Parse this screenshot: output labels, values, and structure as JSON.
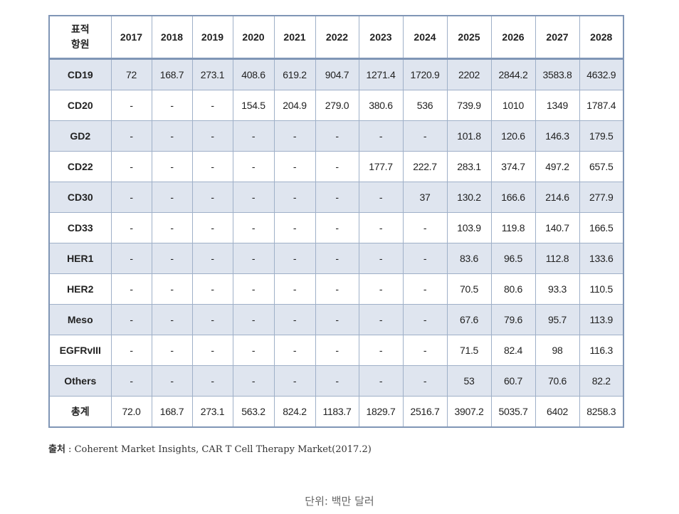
{
  "chart_data": {
    "type": "table",
    "corner_header": [
      "표적",
      "항원"
    ],
    "columns": [
      "2017",
      "2018",
      "2019",
      "2020",
      "2021",
      "2022",
      "2023",
      "2024",
      "2025",
      "2026",
      "2027",
      "2028"
    ],
    "rows": [
      {
        "label": "CD19",
        "values": [
          "72",
          "168.7",
          "273.1",
          "408.6",
          "619.2",
          "904.7",
          "1271.4",
          "1720.9",
          "2202",
          "2844.2",
          "3583.8",
          "4632.9"
        ]
      },
      {
        "label": "CD20",
        "values": [
          "-",
          "-",
          "-",
          "154.5",
          "204.9",
          "279.0",
          "380.6",
          "536",
          "739.9",
          "1010",
          "1349",
          "1787.4"
        ]
      },
      {
        "label": "GD2",
        "values": [
          "-",
          "-",
          "-",
          "-",
          "-",
          "-",
          "-",
          "-",
          "101.8",
          "120.6",
          "146.3",
          "179.5"
        ]
      },
      {
        "label": "CD22",
        "values": [
          "-",
          "-",
          "-",
          "-",
          "-",
          "-",
          "177.7",
          "222.7",
          "283.1",
          "374.7",
          "497.2",
          "657.5"
        ]
      },
      {
        "label": "CD30",
        "values": [
          "-",
          "-",
          "-",
          "-",
          "-",
          "-",
          "-",
          "37",
          "130.2",
          "166.6",
          "214.6",
          "277.9"
        ]
      },
      {
        "label": "CD33",
        "values": [
          "-",
          "-",
          "-",
          "-",
          "-",
          "-",
          "-",
          "-",
          "103.9",
          "119.8",
          "140.7",
          "166.5"
        ]
      },
      {
        "label": "HER1",
        "values": [
          "-",
          "-",
          "-",
          "-",
          "-",
          "-",
          "-",
          "-",
          "83.6",
          "96.5",
          "112.8",
          "133.6"
        ]
      },
      {
        "label": "HER2",
        "values": [
          "-",
          "-",
          "-",
          "-",
          "-",
          "-",
          "-",
          "-",
          "70.5",
          "80.6",
          "93.3",
          "110.5"
        ]
      },
      {
        "label": "Meso",
        "values": [
          "-",
          "-",
          "-",
          "-",
          "-",
          "-",
          "-",
          "-",
          "67.6",
          "79.6",
          "95.7",
          "113.9"
        ]
      },
      {
        "label": "EGFRvIII",
        "values": [
          "-",
          "-",
          "-",
          "-",
          "-",
          "-",
          "-",
          "-",
          "71.5",
          "82.4",
          "98",
          "116.3"
        ]
      },
      {
        "label": "Others",
        "values": [
          "-",
          "-",
          "-",
          "-",
          "-",
          "-",
          "-",
          "-",
          "53",
          "60.7",
          "70.6",
          "82.2"
        ]
      },
      {
        "label": "총계",
        "values": [
          "72.0",
          "168.7",
          "273.1",
          "563.2",
          "824.2",
          "1183.7",
          "1829.7",
          "2516.7",
          "3907.2",
          "5035.7",
          "6402",
          "8258.3"
        ],
        "total": true
      }
    ]
  },
  "source_label": "출처",
  "source_text": " : Coherent Market Insights, CAR T Cell Therapy Market(2017.2)",
  "unit_note": "단위: 백만 달러"
}
